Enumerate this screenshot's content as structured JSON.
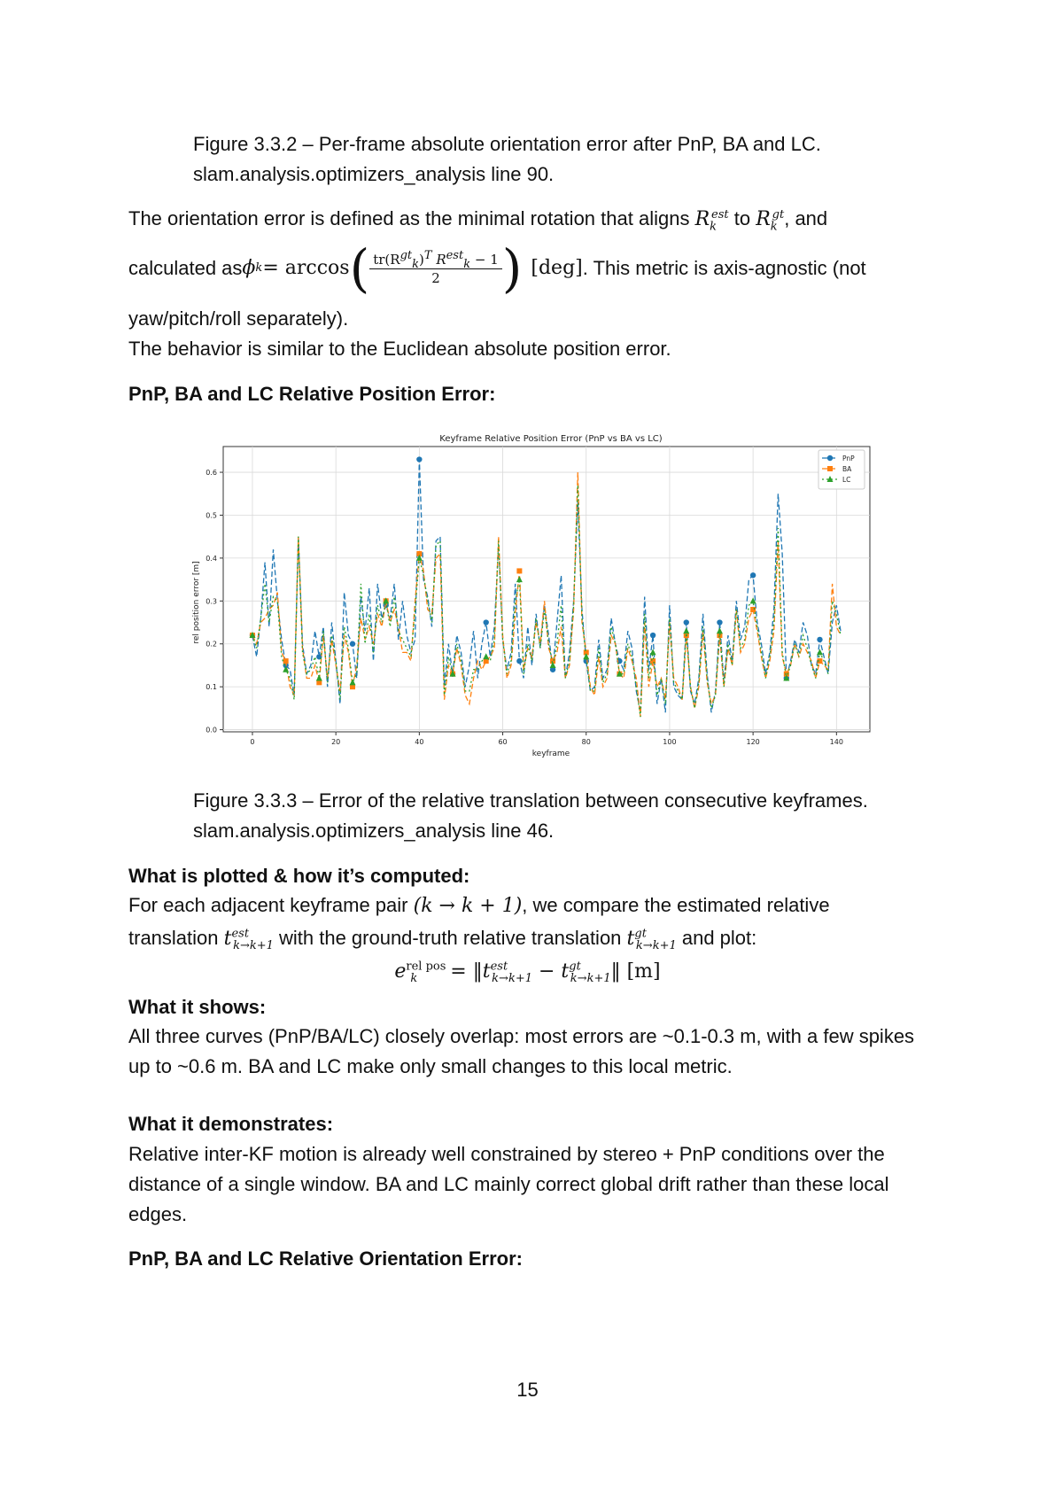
{
  "fig332": {
    "caption_line1": "Figure 3.3.2 – Per-frame absolute orientation error after PnP, BA and LC.",
    "caption_line2": "slam.analysis.optimizers_analysis line 90."
  },
  "orientation": {
    "line1_a": "The orientation error is defined as the minimal rotation that aligns ",
    "R": "R",
    "sub_k": "k",
    "sup_est": "est",
    "sup_gt": "gt",
    "to": " to ",
    "line1_end": ", and",
    "calc_a": "calculated as ",
    "phi": "ϕ",
    "eq_arccos": " = arccos",
    "frac_num": "tr(R",
    "frac_num_mid": ")",
    "frac_T": "T",
    "frac_num_end": " − 1",
    "frac_den": "2",
    "deg": "[deg]",
    "calc_b": ". This metric is axis-agnostic (not",
    "line3": "yaw/pitch/roll separately).",
    "line4": "The behavior is similar to the Euclidean absolute position error."
  },
  "heading_rpe": "PnP, BA and LC Relative Position Error:",
  "chart_data": {
    "type": "line",
    "title": "Keyframe Relative Position Error (PnP vs BA vs LC)",
    "xlabel": "keyframe",
    "ylabel": "rel position error [m]",
    "xlim": [
      -7,
      148
    ],
    "ylim": [
      -0.005,
      0.66
    ],
    "xticks": [
      "0",
      "20",
      "40",
      "60",
      "80",
      "100",
      "120",
      "140"
    ],
    "yticks": [
      "0.0",
      "0.1",
      "0.2",
      "0.3",
      "0.4",
      "0.5",
      "0.6"
    ],
    "grid": true,
    "legend_position": "top-right",
    "x": [
      0,
      1,
      2,
      3,
      4,
      5,
      6,
      7,
      8,
      9,
      10,
      11,
      12,
      13,
      14,
      15,
      16,
      17,
      18,
      19,
      20,
      21,
      22,
      23,
      24,
      25,
      26,
      27,
      28,
      29,
      30,
      31,
      32,
      33,
      34,
      35,
      36,
      37,
      38,
      39,
      40,
      41,
      42,
      43,
      44,
      45,
      46,
      47,
      48,
      49,
      50,
      51,
      52,
      53,
      54,
      55,
      56,
      57,
      58,
      59,
      60,
      61,
      62,
      63,
      64,
      65,
      66,
      67,
      68,
      69,
      70,
      71,
      72,
      73,
      74,
      75,
      76,
      77,
      78,
      79,
      80,
      81,
      82,
      83,
      84,
      85,
      86,
      87,
      88,
      89,
      90,
      91,
      92,
      93,
      94,
      95,
      96,
      97,
      98,
      99,
      100,
      101,
      102,
      103,
      104,
      105,
      106,
      107,
      108,
      109,
      110,
      111,
      112,
      113,
      114,
      115,
      116,
      117,
      118,
      119,
      120,
      121,
      122,
      123,
      124,
      125,
      126,
      127,
      128,
      129,
      130,
      131,
      132,
      133,
      134,
      135,
      136,
      137,
      138,
      139,
      140,
      141
    ],
    "series": [
      {
        "name": "PnP",
        "color": "#1f77b4",
        "marker": "circle",
        "dash": "6,3",
        "values": [
          0.22,
          0.17,
          0.26,
          0.39,
          0.24,
          0.42,
          0.3,
          0.21,
          0.15,
          0.14,
          0.08,
          0.45,
          0.2,
          0.13,
          0.15,
          0.23,
          0.17,
          0.24,
          0.1,
          0.25,
          0.16,
          0.06,
          0.32,
          0.22,
          0.2,
          0.12,
          0.31,
          0.23,
          0.33,
          0.16,
          0.34,
          0.26,
          0.29,
          0.26,
          0.34,
          0.21,
          0.3,
          0.22,
          0.18,
          0.21,
          0.63,
          0.35,
          0.31,
          0.24,
          0.44,
          0.45,
          0.1,
          0.2,
          0.13,
          0.22,
          0.18,
          0.1,
          0.15,
          0.23,
          0.12,
          0.2,
          0.25,
          0.17,
          0.24,
          0.43,
          0.21,
          0.14,
          0.18,
          0.34,
          0.16,
          0.12,
          0.24,
          0.15,
          0.27,
          0.19,
          0.29,
          0.22,
          0.14,
          0.25,
          0.36,
          0.12,
          0.18,
          0.3,
          0.53,
          0.28,
          0.16,
          0.09,
          0.1,
          0.21,
          0.12,
          0.14,
          0.26,
          0.2,
          0.16,
          0.14,
          0.23,
          0.19,
          0.09,
          0.04,
          0.31,
          0.14,
          0.22,
          0.06,
          0.12,
          0.04,
          0.29,
          0.1,
          0.08,
          0.07,
          0.25,
          0.09,
          0.06,
          0.12,
          0.27,
          0.13,
          0.04,
          0.09,
          0.25,
          0.11,
          0.22,
          0.16,
          0.3,
          0.21,
          0.24,
          0.35,
          0.36,
          0.25,
          0.2,
          0.13,
          0.18,
          0.28,
          0.55,
          0.41,
          0.12,
          0.16,
          0.21,
          0.18,
          0.25,
          0.22,
          0.15,
          0.13,
          0.21,
          0.17,
          0.13,
          0.25,
          0.29,
          0.23
        ]
      },
      {
        "name": "BA",
        "color": "#ff7f0e",
        "marker": "square",
        "dash": "6,3",
        "values": [
          0.22,
          0.2,
          0.25,
          0.26,
          0.28,
          0.29,
          0.32,
          0.18,
          0.16,
          0.1,
          0.08,
          0.45,
          0.19,
          0.12,
          0.12,
          0.15,
          0.11,
          0.22,
          0.12,
          0.21,
          0.15,
          0.09,
          0.22,
          0.18,
          0.1,
          0.15,
          0.26,
          0.21,
          0.24,
          0.2,
          0.27,
          0.24,
          0.3,
          0.25,
          0.28,
          0.24,
          0.18,
          0.18,
          0.16,
          0.3,
          0.41,
          0.37,
          0.28,
          0.27,
          0.4,
          0.41,
          0.07,
          0.15,
          0.13,
          0.19,
          0.15,
          0.08,
          0.06,
          0.12,
          0.16,
          0.14,
          0.16,
          0.17,
          0.19,
          0.45,
          0.22,
          0.12,
          0.15,
          0.27,
          0.37,
          0.14,
          0.19,
          0.17,
          0.25,
          0.2,
          0.3,
          0.19,
          0.16,
          0.18,
          0.24,
          0.12,
          0.15,
          0.28,
          0.6,
          0.25,
          0.18,
          0.1,
          0.08,
          0.17,
          0.1,
          0.12,
          0.22,
          0.2,
          0.13,
          0.12,
          0.19,
          0.16,
          0.12,
          0.03,
          0.25,
          0.1,
          0.16,
          0.1,
          0.12,
          0.07,
          0.25,
          0.12,
          0.1,
          0.07,
          0.22,
          0.1,
          0.05,
          0.1,
          0.23,
          0.11,
          0.06,
          0.08,
          0.22,
          0.1,
          0.19,
          0.15,
          0.28,
          0.18,
          0.2,
          0.26,
          0.28,
          0.23,
          0.17,
          0.12,
          0.16,
          0.23,
          0.44,
          0.17,
          0.13,
          0.15,
          0.2,
          0.17,
          0.2,
          0.18,
          0.16,
          0.12,
          0.16,
          0.15,
          0.14,
          0.34,
          0.24,
          0.22
        ]
      },
      {
        "name": "LC",
        "color": "#2ca02c",
        "marker": "triangle",
        "dash": "2,3",
        "values": [
          0.22,
          0.19,
          0.26,
          0.34,
          0.25,
          0.31,
          0.3,
          0.17,
          0.14,
          0.12,
          0.07,
          0.45,
          0.18,
          0.13,
          0.14,
          0.17,
          0.12,
          0.23,
          0.11,
          0.22,
          0.16,
          0.07,
          0.24,
          0.19,
          0.11,
          0.13,
          0.34,
          0.2,
          0.27,
          0.18,
          0.29,
          0.25,
          0.3,
          0.24,
          0.31,
          0.23,
          0.21,
          0.19,
          0.17,
          0.28,
          0.4,
          0.36,
          0.3,
          0.25,
          0.43,
          0.44,
          0.08,
          0.17,
          0.13,
          0.2,
          0.16,
          0.09,
          0.09,
          0.14,
          0.14,
          0.16,
          0.17,
          0.16,
          0.21,
          0.44,
          0.21,
          0.13,
          0.16,
          0.3,
          0.35,
          0.13,
          0.2,
          0.16,
          0.26,
          0.19,
          0.28,
          0.2,
          0.15,
          0.2,
          0.29,
          0.12,
          0.16,
          0.29,
          0.57,
          0.26,
          0.17,
          0.09,
          0.09,
          0.19,
          0.11,
          0.13,
          0.24,
          0.2,
          0.13,
          0.13,
          0.2,
          0.17,
          0.1,
          0.03,
          0.27,
          0.12,
          0.18,
          0.08,
          0.12,
          0.06,
          0.26,
          0.11,
          0.09,
          0.07,
          0.23,
          0.1,
          0.05,
          0.11,
          0.24,
          0.12,
          0.05,
          0.08,
          0.23,
          0.1,
          0.2,
          0.15,
          0.28,
          0.19,
          0.21,
          0.29,
          0.3,
          0.24,
          0.18,
          0.12,
          0.17,
          0.25,
          0.47,
          0.18,
          0.12,
          0.15,
          0.2,
          0.17,
          0.22,
          0.19,
          0.15,
          0.12,
          0.18,
          0.16,
          0.13,
          0.3,
          0.27,
          0.22
        ]
      }
    ],
    "marker_every": 8
  },
  "fig333": {
    "caption_line1": "Figure 3.3.3 – Error of the relative translation between consecutive keyframes.",
    "caption_line2": "slam.analysis.optimizers_analysis line 46."
  },
  "plotted": {
    "heading": "What is plotted & how it’s computed:",
    "line1_a": "For each adjacent keyframe pair ",
    "pair": "(k → k + 1)",
    "line1_b": ", we compare the estimated relative",
    "line2_a": "translation ",
    "t": "t",
    "sub_kk1": "k→k+1",
    "line2_b": " with the ground-truth relative translation ",
    "line2_c": " and plot:",
    "e": "e",
    "sup_relpos": "rel pos",
    "sub_k": "k",
    "eq": " = ‖",
    "minus": " − ",
    "eq_end": "‖  [m]"
  },
  "shows": {
    "heading": "What it shows:",
    "text": "All three curves (PnP/BA/LC) closely overlap: most errors are ~0.1-0.3 m, with a few spikes up to ~0.6 m. BA and LC make only small changes to this local metric."
  },
  "demonstrates": {
    "heading": "What it demonstrates:",
    "text": "Relative inter-KF motion is already well constrained by stereo + PnP conditions over the distance of a single window. BA and LC mainly correct global drift rather than these local edges."
  },
  "heading_roe": "PnP, BA and LC Relative Orientation Error:",
  "page_number": "15"
}
